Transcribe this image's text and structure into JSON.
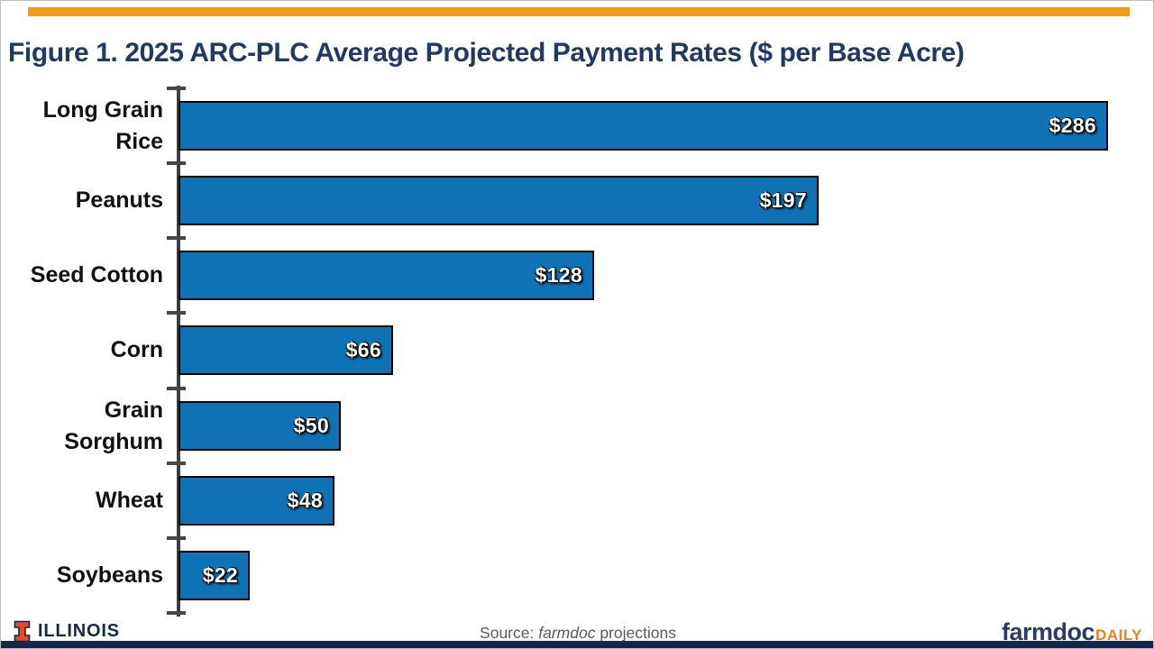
{
  "title": "Figure 1. 2025 ARC-PLC Average Projected Payment Rates ($ per Base Acre)",
  "chart_data": {
    "type": "bar",
    "orientation": "horizontal",
    "title": "Figure 1. 2025 ARC-PLC Average Projected Payment Rates ($ per Base Acre)",
    "categories": [
      "Long Grain Rice",
      "Peanuts",
      "Seed Cotton",
      "Corn",
      "Grain Sorghum",
      "Wheat",
      "Soybeans"
    ],
    "categories_display": [
      [
        "Long Grain",
        "Rice"
      ],
      [
        "Peanuts"
      ],
      [
        "Seed Cotton"
      ],
      [
        "Corn"
      ],
      [
        "Grain",
        "Sorghum"
      ],
      [
        "Wheat"
      ],
      [
        "Soybeans"
      ]
    ],
    "values": [
      286,
      197,
      128,
      66,
      50,
      48,
      22
    ],
    "value_labels": [
      "$286",
      "$197",
      "$128",
      "$66",
      "$50",
      "$48",
      "$22"
    ],
    "xlabel": "",
    "ylabel": "",
    "xlim": [
      0,
      286
    ],
    "grid": "off",
    "legend": "none",
    "value_label_position": "inside-end",
    "bar_color": "#0e72b4",
    "bar_border_color": "#000000"
  },
  "footer": {
    "illinois_wordmark": "ILLINOIS",
    "source_prefix": "Source: ",
    "source_italic": "farmdoc",
    "source_suffix": " projections",
    "brand_main": "farmdoc",
    "brand_daily": "DAILY"
  },
  "colors": {
    "title_navy": "#1f3a63",
    "bar_blue": "#0e72b4",
    "axis_gray": "#3f3f3f",
    "source_gray": "#58595b",
    "illinois_navy": "#13294b",
    "block_i_orange": "#e84a27",
    "farmdoc_navy": "#2b3a67",
    "daily_orange": "#f47b20",
    "top_accent_orange": "#f59c1a",
    "bottom_accent_navy": "#13294b"
  }
}
